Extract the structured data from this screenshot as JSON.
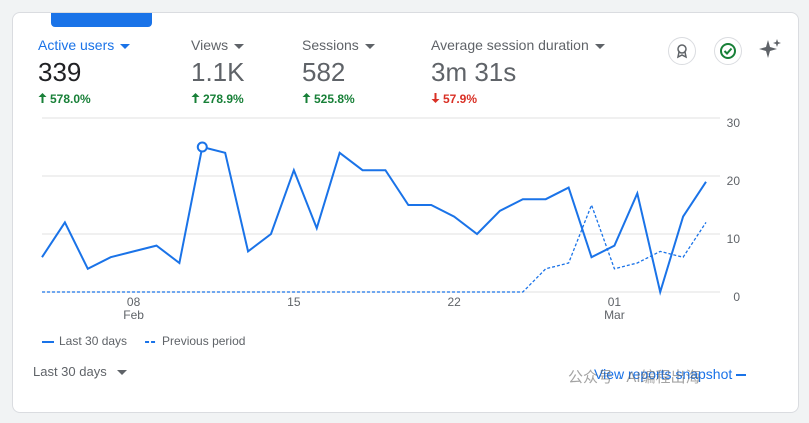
{
  "metrics": [
    {
      "label": "Active users",
      "value": "339",
      "change": "578.0%",
      "direction": "up",
      "active": true
    },
    {
      "label": "Views",
      "value": "1.1K",
      "change": "278.9%",
      "direction": "up",
      "active": false
    },
    {
      "label": "Sessions",
      "value": "582",
      "change": "525.8%",
      "direction": "up",
      "active": false
    },
    {
      "label": "Average session duration",
      "value": "3m 31s",
      "change": "57.9%",
      "direction": "down",
      "active": false
    }
  ],
  "chart_data": {
    "type": "line",
    "categories": [
      null,
      null,
      null,
      null,
      "08",
      null,
      null,
      null,
      null,
      null,
      null,
      "15",
      null,
      null,
      null,
      null,
      null,
      null,
      "22",
      null,
      null,
      null,
      null,
      null,
      null,
      "01",
      null,
      null,
      null,
      null
    ],
    "month_labels": [
      null,
      null,
      null,
      null,
      "Feb",
      null,
      null,
      null,
      null,
      null,
      null,
      null,
      null,
      null,
      null,
      null,
      null,
      null,
      null,
      null,
      null,
      null,
      null,
      null,
      null,
      "Mar",
      null,
      null,
      null,
      null
    ],
    "series": [
      {
        "name": "Last 30 days",
        "color": "#1a73e8",
        "style": "solid",
        "values": [
          6,
          12,
          4,
          6,
          7,
          8,
          5,
          25,
          24,
          7,
          10,
          21,
          11,
          24,
          21,
          21,
          15,
          15,
          13,
          10,
          14,
          16,
          16,
          18,
          6,
          8,
          17,
          0,
          13,
          19
        ]
      },
      {
        "name": "Previous period",
        "color": "#1a73e8",
        "style": "dashed",
        "values": [
          0,
          0,
          0,
          0,
          0,
          0,
          0,
          0,
          0,
          0,
          0,
          0,
          0,
          0,
          0,
          0,
          0,
          0,
          0,
          0,
          0,
          0,
          4,
          5,
          15,
          4,
          5,
          7,
          6,
          12
        ]
      }
    ],
    "highlight": 7,
    "ylim": [
      0,
      30
    ],
    "yticks": [
      0,
      10,
      20,
      30
    ],
    "grid": true
  },
  "footer": {
    "range": "Last 30 days",
    "link": "View reports snapshot"
  },
  "watermark": "公众号 · AI编程出海"
}
